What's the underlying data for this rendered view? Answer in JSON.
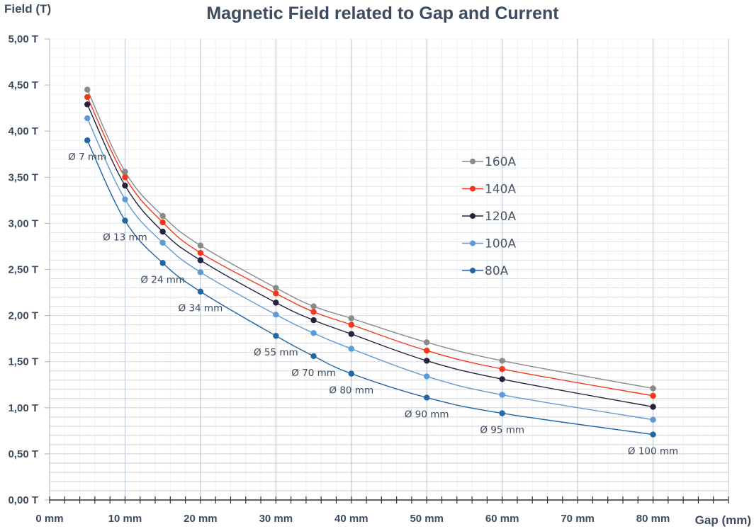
{
  "chart_data": {
    "type": "line",
    "title": "Magnetic Field related to Gap and Current",
    "xlabel": "Gap (mm)",
    "ylabel": "Field (T)",
    "xlim": [
      0,
      90
    ],
    "ylim": [
      0,
      5
    ],
    "x_major_step": 10,
    "x_minor_step": 2,
    "y_major_step": 0.5,
    "y_minor_step": 0.1,
    "grid": true,
    "legend_position": "right-center",
    "x_tick_labels": [
      "0 mm",
      "10 mm",
      "20 mm",
      "30 mm",
      "40 mm",
      "50 mm",
      "60 mm",
      "70 mm",
      "80 mm"
    ],
    "y_tick_labels": [
      "0,00 T",
      "0,50 T",
      "1,00 T",
      "1,50 T",
      "2,00 T",
      "2,50 T",
      "3,00 T",
      "3,50 T",
      "4,00 T",
      "4,50 T",
      "5,00 T"
    ],
    "x": [
      5,
      10,
      15,
      20,
      30,
      35,
      40,
      50,
      60,
      80
    ],
    "series": [
      {
        "name": "160A",
        "color": "#8a8a8a",
        "values": [
          4.45,
          3.56,
          3.08,
          2.76,
          2.3,
          2.1,
          1.97,
          1.71,
          1.51,
          1.21
        ]
      },
      {
        "name": "140A",
        "color": "#f5361b",
        "values": [
          4.37,
          3.5,
          3.01,
          2.68,
          2.24,
          2.04,
          1.9,
          1.62,
          1.42,
          1.13
        ]
      },
      {
        "name": "120A",
        "color": "#25223f",
        "values": [
          4.29,
          3.41,
          2.91,
          2.6,
          2.14,
          1.95,
          1.8,
          1.51,
          1.31,
          1.01
        ]
      },
      {
        "name": "100A",
        "color": "#5b9bd5",
        "values": [
          4.14,
          3.26,
          2.79,
          2.47,
          2.01,
          1.81,
          1.64,
          1.34,
          1.14,
          0.87
        ]
      },
      {
        "name": "80A",
        "color": "#2266a6",
        "values": [
          3.9,
          3.03,
          2.57,
          2.26,
          1.78,
          1.56,
          1.37,
          1.11,
          0.94,
          0.71
        ]
      }
    ],
    "annotations": [
      {
        "x": 5,
        "text": "Ø 7 mm"
      },
      {
        "x": 10,
        "text": "Ø 13 mm"
      },
      {
        "x": 15,
        "text": "Ø 24 mm"
      },
      {
        "x": 20,
        "text": "Ø 34 mm"
      },
      {
        "x": 30,
        "text": "Ø 55 mm"
      },
      {
        "x": 35,
        "text": "Ø 70 mm"
      },
      {
        "x": 40,
        "text": "Ø 80 mm"
      },
      {
        "x": 50,
        "text": "Ø 90 mm"
      },
      {
        "x": 60,
        "text": "Ø 95 mm"
      },
      {
        "x": 80,
        "text": "Ø 100 mm"
      }
    ],
    "annotation_series": "80A"
  }
}
